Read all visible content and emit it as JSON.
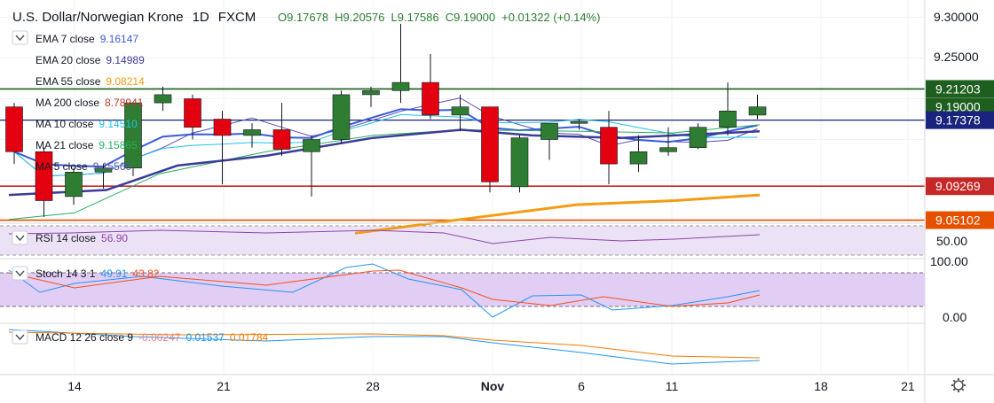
{
  "header": {
    "symbol": "U.S. Dollar/Norwegian Krone",
    "interval": "1D",
    "source": "FXCM",
    "open": "O9.17678",
    "high": "H9.20576",
    "low": "L9.17586",
    "close": "C9.19000",
    "change": "+0.01322 (+0.14%)"
  },
  "legend": [
    {
      "label": "EMA 7 close",
      "value": "9.16147",
      "color": "#3b5bdb"
    },
    {
      "label": "EMA 20 close",
      "value": "9.14989",
      "color": "#3b3b98"
    },
    {
      "label": "EMA 55 close",
      "value": "9.08214",
      "color": "#f39c12"
    },
    {
      "label": "MA 200 close",
      "value": "8.78941",
      "color": "#c0392b"
    },
    {
      "label": "MA 10 close",
      "value": "9.14510",
      "color": "#22c3e6"
    },
    {
      "label": "MA 21 close",
      "value": "9.15865",
      "color": "#27ae60"
    },
    {
      "label": "MA 5 close",
      "value": "9.15560",
      "color": "#5b4fb3"
    }
  ],
  "rsi": {
    "label": "RSI 14 close",
    "value": "56.90",
    "color": "#8e44ad"
  },
  "stoch": {
    "label": "Stoch 14 3 1",
    "k": "49.91",
    "d": "43.82",
    "k_color": "#2196f3",
    "d_color": "#f4511e"
  },
  "macd": {
    "label": "MACD 12 26 close 9",
    "hist": "-0.00247",
    "macd": "0.01537",
    "signal": "0.01784",
    "hist_color": "#f08080",
    "macd_color": "#2196f3",
    "signal_color": "#f57c00"
  },
  "price_axis": {
    "ticks": [
      "9.30000",
      "9.25000",
      "9.19000"
    ]
  },
  "price_labels": [
    {
      "value": 9.21203,
      "text": "9.21203",
      "color": "#1e5e1e"
    },
    {
      "value": 9.19,
      "text": "9.19000",
      "color": "#1e5e1e"
    },
    {
      "value": 9.17378,
      "text": "9.17378",
      "color": "#1a237e"
    },
    {
      "value": 9.09269,
      "text": "9.09269",
      "color": "#c62828"
    },
    {
      "value": 9.05102,
      "text": "9.05102",
      "color": "#e65100"
    }
  ],
  "rsi_axis": {
    "tick": "50.00"
  },
  "stoch_axis": {
    "ticks": [
      "100.00",
      "0.00"
    ]
  },
  "time_axis": {
    "labels": [
      "14",
      "21",
      "28",
      "Nov",
      "6",
      "11",
      "18",
      "21"
    ]
  },
  "colors": {
    "up": "#2e7d32",
    "down": "#e3000f",
    "grid": "#f0f3fa",
    "rsi_band": "#ece2f5",
    "stoch_band": "#e2cdf5"
  },
  "chart_data": {
    "type": "candlestick",
    "title": "U.S. Dollar/Norwegian Krone",
    "x_day_labels": [
      "14",
      "21",
      "28",
      "Nov",
      "6",
      "11",
      "18",
      "21"
    ],
    "ylim": [
      9.03,
      9.32
    ],
    "candles": [
      {
        "o": 9.19,
        "h": 9.195,
        "l": 9.12,
        "c": 9.135
      },
      {
        "o": 9.135,
        "h": 9.14,
        "l": 9.055,
        "c": 9.075
      },
      {
        "o": 9.08,
        "h": 9.115,
        "l": 9.07,
        "c": 9.11
      },
      {
        "o": 9.11,
        "h": 9.12,
        "l": 9.09,
        "c": 9.115
      },
      {
        "o": 9.115,
        "h": 9.195,
        "l": 9.105,
        "c": 9.195
      },
      {
        "o": 9.195,
        "h": 9.215,
        "l": 9.185,
        "c": 9.205
      },
      {
        "o": 9.2,
        "h": 9.205,
        "l": 9.15,
        "c": 9.165
      },
      {
        "o": 9.175,
        "h": 9.185,
        "l": 9.095,
        "c": 9.155
      },
      {
        "o": 9.155,
        "h": 9.17,
        "l": 9.14,
        "c": 9.162
      },
      {
        "o": 9.162,
        "h": 9.195,
        "l": 9.13,
        "c": 9.138
      },
      {
        "o": 9.135,
        "h": 9.155,
        "l": 9.08,
        "c": 9.15
      },
      {
        "o": 9.15,
        "h": 9.21,
        "l": 9.145,
        "c": 9.205
      },
      {
        "o": 9.205,
        "h": 9.215,
        "l": 9.19,
        "c": 9.21
      },
      {
        "o": 9.21,
        "h": 9.292,
        "l": 9.195,
        "c": 9.22
      },
      {
        "o": 9.22,
        "h": 9.255,
        "l": 9.175,
        "c": 9.18
      },
      {
        "o": 9.18,
        "h": 9.205,
        "l": 9.16,
        "c": 9.19
      },
      {
        "o": 9.19,
        "h": 9.19,
        "l": 9.085,
        "c": 9.098
      },
      {
        "o": 9.092,
        "h": 9.155,
        "l": 9.085,
        "c": 9.152
      },
      {
        "o": 9.15,
        "h": 9.17,
        "l": 9.125,
        "c": 9.17
      },
      {
        "o": 9.17,
        "h": 9.175,
        "l": 9.162,
        "c": 9.172
      },
      {
        "o": 9.165,
        "h": 9.185,
        "l": 9.095,
        "c": 9.12
      },
      {
        "o": 9.12,
        "h": 9.155,
        "l": 9.11,
        "c": 9.135
      },
      {
        "o": 9.135,
        "h": 9.165,
        "l": 9.13,
        "c": 9.14
      },
      {
        "o": 9.14,
        "h": 9.17,
        "l": 9.138,
        "c": 9.165
      },
      {
        "o": 9.165,
        "h": 9.22,
        "l": 9.155,
        "c": 9.185
      },
      {
        "o": 9.18,
        "h": 9.205,
        "l": 9.175,
        "c": 9.19
      }
    ]
  }
}
